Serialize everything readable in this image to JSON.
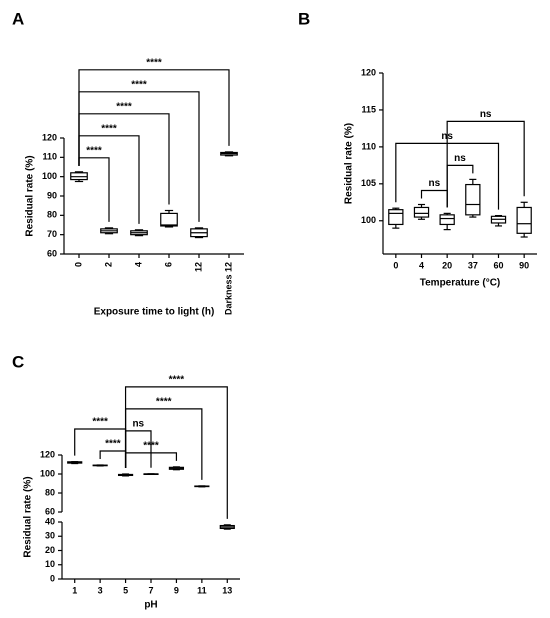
{
  "chart_data": [
    {
      "type": "box",
      "panel": "A",
      "xlabel": "Exposure time to light (h)",
      "ylabel": "Residual rate (%)",
      "categories": [
        "0",
        "2",
        "4",
        "6",
        "12",
        "Darkness 12"
      ],
      "boxes": [
        {
          "min": 97.5,
          "q1": 98.5,
          "median": 100,
          "q3": 102,
          "max": 102.5
        },
        {
          "min": 70.5,
          "q1": 71,
          "median": 72,
          "q3": 73,
          "max": 73.5
        },
        {
          "min": 69.5,
          "q1": 70,
          "median": 71,
          "q3": 72,
          "max": 72.5
        },
        {
          "min": 74,
          "q1": 74.5,
          "median": 75,
          "q3": 81,
          "max": 82.5
        },
        {
          "min": 68.5,
          "q1": 69,
          "median": 71,
          "q3": 73,
          "max": 73.5
        },
        {
          "min": 110.8,
          "q1": 111.2,
          "median": 112,
          "q3": 112.5,
          "max": 112.8
        }
      ],
      "ylim": [
        60,
        120
      ],
      "yticks": [
        60,
        70,
        80,
        90,
        100,
        110,
        120
      ],
      "color": "#ffffff",
      "brackets": [
        {
          "from": 0,
          "to": 1,
          "label": "****"
        },
        {
          "from": 0,
          "to": 2,
          "label": "****"
        },
        {
          "from": 0,
          "to": 3,
          "label": "****"
        },
        {
          "from": 0,
          "to": 4,
          "label": "****"
        },
        {
          "from": 0,
          "to": 5,
          "label": "****"
        }
      ]
    },
    {
      "type": "box",
      "panel": "B",
      "xlabel": "Temperature (°C)",
      "ylabel": "Residual rate (%)",
      "categories": [
        "0",
        "4",
        "20",
        "37",
        "60",
        "90"
      ],
      "boxes": [
        {
          "min": 99,
          "q1": 99.5,
          "median": 101,
          "q3": 101.5,
          "max": 101.7
        },
        {
          "min": 100.2,
          "q1": 100.5,
          "median": 101,
          "q3": 101.8,
          "max": 102.2
        },
        {
          "min": 98.8,
          "q1": 99.5,
          "median": 100.3,
          "q3": 100.8,
          "max": 101
        },
        {
          "min": 100.5,
          "q1": 100.8,
          "median": 102.2,
          "q3": 104.9,
          "max": 105.6
        },
        {
          "min": 99.3,
          "q1": 99.7,
          "median": 100.2,
          "q3": 100.6,
          "max": 100.7
        },
        {
          "min": 97.8,
          "q1": 98.3,
          "median": 99.6,
          "q3": 101.8,
          "max": 102.5
        }
      ],
      "ylim": [
        95.5,
        120
      ],
      "yticks": [
        100,
        105,
        110,
        115,
        120
      ],
      "color": "#ffffff",
      "brackets": [
        {
          "from": 1,
          "to": 2,
          "label": "ns"
        },
        {
          "from": 2,
          "to": 3,
          "label": "ns"
        },
        {
          "from": 0,
          "to": 4,
          "label": "ns"
        },
        {
          "from": 2,
          "to": 5,
          "label": "ns"
        }
      ]
    },
    {
      "type": "box",
      "panel": "C",
      "xlabel": "pH",
      "ylabel": "Residual rate (%)",
      "categories": [
        "1",
        "3",
        "5",
        "7",
        "9",
        "11",
        "13"
      ],
      "boxes": [
        {
          "min": 111,
          "q1": 111.5,
          "median": 112,
          "q3": 112.8,
          "max": 113
        },
        {
          "min": 108.5,
          "q1": 108.8,
          "median": 109,
          "q3": 109.3,
          "max": 109.5
        },
        {
          "min": 98,
          "q1": 98.5,
          "median": 99,
          "q3": 99.5,
          "max": 100
        },
        {
          "min": 99.8,
          "q1": 99.9,
          "median": 100,
          "q3": 100.1,
          "max": 100.2
        },
        {
          "min": 104.5,
          "q1": 105,
          "median": 106,
          "q3": 107,
          "max": 107.5
        },
        {
          "min": 86.5,
          "q1": 86.8,
          "median": 87,
          "q3": 87.3,
          "max": 87.5
        },
        {
          "min": 35,
          "q1": 35.5,
          "median": 36.5,
          "q3": 37.5,
          "max": 38
        }
      ],
      "ylim": [
        0,
        120
      ],
      "ybreak": [
        40,
        60
      ],
      "yticks": [
        0,
        10,
        20,
        30,
        40,
        60,
        80,
        100,
        120
      ],
      "color": "#ffffff",
      "brackets": [
        {
          "from": 1,
          "to": 2,
          "label": "****"
        },
        {
          "from": 2,
          "to": 4,
          "label": "****"
        },
        {
          "from": 0,
          "to": 2,
          "label": "****"
        },
        {
          "from": 2,
          "to": 3,
          "label": "ns"
        },
        {
          "from": 2,
          "to": 5,
          "label": "****"
        },
        {
          "from": 2,
          "to": 6,
          "label": "****"
        }
      ]
    }
  ]
}
